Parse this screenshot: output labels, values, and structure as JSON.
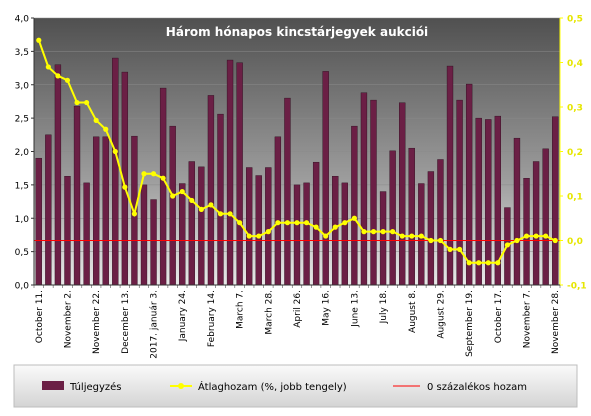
{
  "chart_data": {
    "type": "bar+line",
    "title": "Három hónapos kincstárjegyek aukciói",
    "left_axis": {
      "min": 0,
      "max": 4.0,
      "step": 0.5,
      "ticks": [
        "0,0",
        "0,5",
        "1,0",
        "1,5",
        "2,0",
        "2,5",
        "3,0",
        "3,5",
        "4,0"
      ]
    },
    "right_axis": {
      "min": -0.1,
      "max": 0.5,
      "step": 0.1,
      "ticks": [
        "-0,1",
        "0,0",
        "0,1",
        "0,2",
        "0,3",
        "0,4",
        "0,5"
      ]
    },
    "x_labels": [
      {
        "index": 0,
        "label": "October 11."
      },
      {
        "index": 3,
        "label": "November 2."
      },
      {
        "index": 6,
        "label": "November 22."
      },
      {
        "index": 9,
        "label": "December 13."
      },
      {
        "index": 12,
        "label": "2017. január 3."
      },
      {
        "index": 15,
        "label": "January 24."
      },
      {
        "index": 18,
        "label": "February 14."
      },
      {
        "index": 21,
        "label": "March 7."
      },
      {
        "index": 24,
        "label": "March 28."
      },
      {
        "index": 27,
        "label": "April 26."
      },
      {
        "index": 30,
        "label": "May 16."
      },
      {
        "index": 33,
        "label": "June 13."
      },
      {
        "index": 36,
        "label": "July 18."
      },
      {
        "index": 39,
        "label": "August 8."
      },
      {
        "index": 42,
        "label": "August 29."
      },
      {
        "index": 45,
        "label": "September 19."
      },
      {
        "index": 48,
        "label": "October 17."
      },
      {
        "index": 51,
        "label": "November 7."
      },
      {
        "index": 54,
        "label": "November 28."
      }
    ],
    "series": [
      {
        "name": "Túljegyzés",
        "kind": "bar",
        "axis": "left",
        "color": "#6b1f45",
        "values": [
          1.9,
          2.25,
          3.3,
          1.63,
          2.68,
          1.53,
          2.22,
          2.22,
          3.4,
          3.19,
          2.23,
          1.5,
          1.28,
          2.95,
          2.38,
          1.52,
          1.85,
          1.77,
          2.84,
          2.56,
          3.37,
          3.33,
          1.76,
          1.64,
          1.76,
          2.22,
          2.8,
          1.5,
          1.53,
          1.84,
          3.2,
          1.63,
          1.53,
          2.38,
          2.88,
          2.77,
          1.4,
          2.01,
          2.73,
          2.05,
          1.52,
          1.7,
          1.88,
          3.28,
          2.77,
          3.01,
          2.5,
          2.48,
          2.53,
          1.16,
          2.2,
          1.6,
          1.85,
          2.04,
          2.52
        ]
      },
      {
        "name": "Átlaghozam (%, jobb tengely)",
        "kind": "line",
        "axis": "right",
        "color": "#ffff00",
        "values": [
          0.45,
          0.39,
          0.37,
          0.36,
          0.31,
          0.31,
          0.27,
          0.25,
          0.2,
          0.12,
          0.06,
          0.15,
          0.15,
          0.14,
          0.1,
          0.11,
          0.09,
          0.07,
          0.08,
          0.06,
          0.06,
          0.04,
          0.01,
          0.01,
          0.02,
          0.04,
          0.04,
          0.04,
          0.04,
          0.03,
          0.01,
          0.03,
          0.04,
          0.05,
          0.02,
          0.02,
          0.02,
          0.02,
          0.01,
          0.01,
          0.01,
          0.0,
          0.0,
          -0.02,
          -0.02,
          -0.05,
          -0.05,
          -0.05,
          -0.05,
          -0.01,
          0.0,
          0.01,
          0.01,
          0.01,
          0.0
        ]
      },
      {
        "name": "0 százalékos hozam",
        "kind": "line",
        "axis": "right",
        "color": "#ff0000",
        "value": 0.0
      }
    ],
    "legend_position": "bottom"
  }
}
